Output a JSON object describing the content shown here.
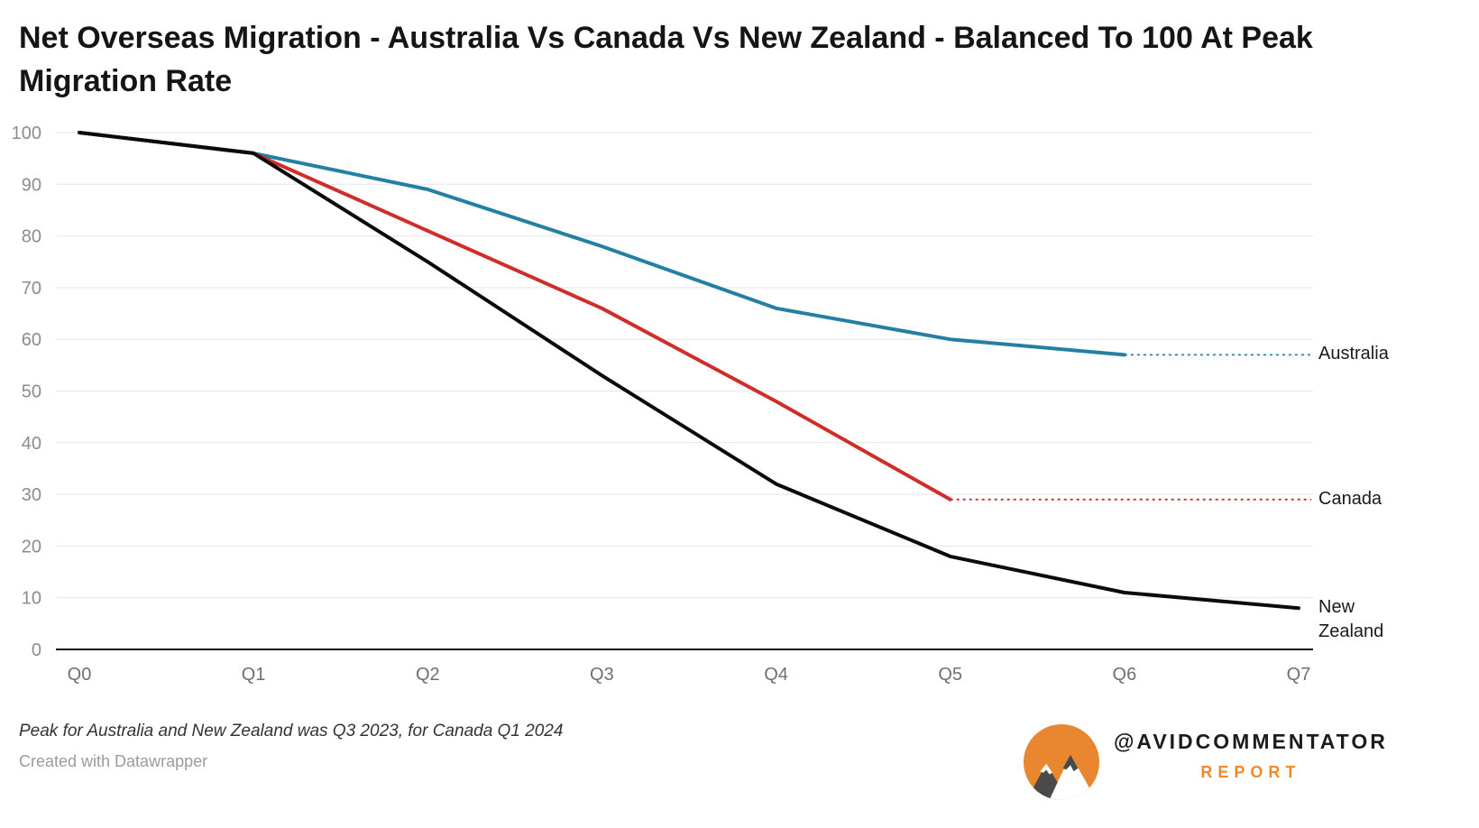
{
  "footer": {
    "note": "Peak for Australia and New Zealand was Q3 2023, for Canada Q1 2024",
    "credit": "Created with Datawrapper"
  },
  "branding": {
    "handle": "@AVIDCOMMENTATOR",
    "sub": "REPORT",
    "accent_color": "#ee8a2d",
    "logo": "mountain-logo"
  },
  "chart_data": {
    "type": "line",
    "title": "Net Overseas Migration - Australia Vs Canada Vs New Zealand - Balanced To 100 At Peak Migration Rate",
    "xlabel": "",
    "ylabel": "",
    "x": [
      "Q0",
      "Q1",
      "Q2",
      "Q3",
      "Q4",
      "Q5",
      "Q6",
      "Q7"
    ],
    "ylim": [
      0,
      100
    ],
    "yticks": [
      0,
      10,
      20,
      30,
      40,
      50,
      60,
      70,
      80,
      90,
      100
    ],
    "grid": true,
    "legend_position": "right-edge-labels",
    "gridline_color": "#e5e5e5",
    "axis_color": "#111111",
    "series": [
      {
        "name": "Australia",
        "color": "#2380a2",
        "values": [
          100,
          96,
          89,
          78,
          66,
          60,
          57
        ],
        "dotted_extension_to_right_edge": true
      },
      {
        "name": "Canada",
        "color": "#cf2d27",
        "values": [
          100,
          96,
          81,
          66,
          48,
          29
        ],
        "dotted_extension_to_right_edge": true
      },
      {
        "name": "New Zealand",
        "color": "#0b0b0b",
        "values": [
          100,
          96,
          75,
          53,
          32,
          18,
          11,
          8
        ],
        "dotted_extension_to_right_edge": false
      }
    ]
  }
}
